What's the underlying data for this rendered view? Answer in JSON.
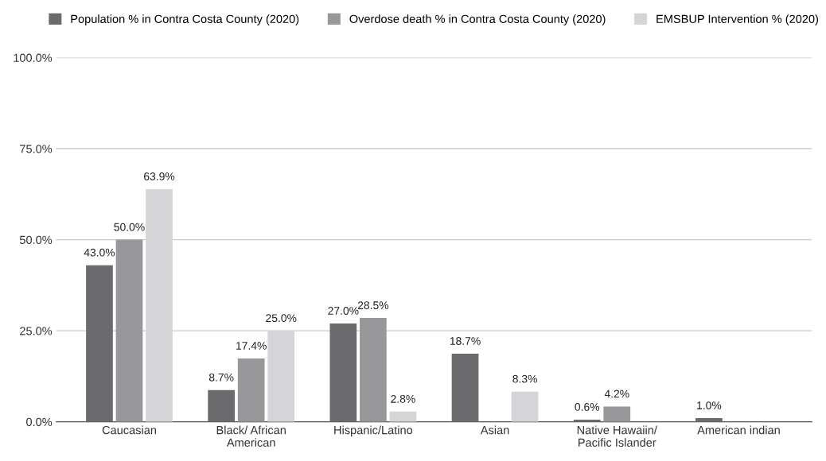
{
  "chart_data": {
    "type": "bar",
    "categories": [
      "Caucasian",
      "Black/ African\nAmerican",
      "Hispanic/Latino",
      "Asian",
      "Native Hawaiin/\nPacific Islander",
      "American indian"
    ],
    "series": [
      {
        "name": "Population % in Contra Costa County (2020)",
        "color": "#6b6b6e",
        "values": [
          43.0,
          8.7,
          27.0,
          18.7,
          0.6,
          1.0
        ],
        "value_labels": [
          "43.0%",
          "8.7%",
          "27.0%",
          "18.7%",
          "0.6%",
          "1.0%"
        ]
      },
      {
        "name": "Overdose death % in Contra Costa County (2020)",
        "color": "#98989b",
        "values": [
          50.0,
          17.4,
          28.5,
          null,
          4.2,
          null
        ],
        "value_labels": [
          "50.0%",
          "17.4%",
          "28.5%",
          null,
          "4.2%",
          null
        ]
      },
      {
        "name": "EMSBUP Intervention % (2020)",
        "color": "#d5d5d7",
        "values": [
          63.9,
          25.0,
          2.8,
          8.3,
          null,
          null
        ],
        "value_labels": [
          "63.9%",
          "25.0%",
          "2.8%",
          "8.3%",
          null,
          null
        ]
      }
    ],
    "ylim": [
      0,
      100
    ],
    "yticks": [
      {
        "value": 0,
        "label": "0.0%"
      },
      {
        "value": 25,
        "label": "25.0%"
      },
      {
        "value": 50,
        "label": "50.0%"
      },
      {
        "value": 75,
        "label": "75.0%"
      },
      {
        "value": 100,
        "label": "100.0%"
      }
    ],
    "grid": "y",
    "legend": "top"
  }
}
